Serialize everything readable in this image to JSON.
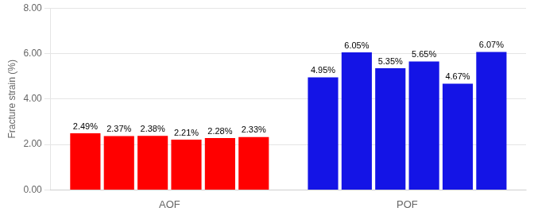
{
  "chart_data": {
    "type": "bar",
    "ylabel": "Fracture strain (%)",
    "categories": [
      "AOF",
      "POF"
    ],
    "series": [
      {
        "values": [
          2.49,
          4.95
        ],
        "value_labels": [
          "2.49%",
          "4.95%"
        ],
        "colors": [
          "#FF0000",
          "#1414E6"
        ]
      },
      {
        "values": [
          2.37,
          6.05
        ],
        "value_labels": [
          "2.37%",
          "6.05%"
        ],
        "colors": [
          "#FF0000",
          "#1414E6"
        ]
      },
      {
        "values": [
          2.38,
          5.35
        ],
        "value_labels": [
          "2.38%",
          "5.35%"
        ],
        "colors": [
          "#FF0000",
          "#1414E6"
        ]
      },
      {
        "values": [
          2.21,
          5.65
        ],
        "value_labels": [
          "2.21%",
          "5.65%"
        ],
        "colors": [
          "#FF0000",
          "#1414E6"
        ]
      },
      {
        "values": [
          2.28,
          4.67
        ],
        "value_labels": [
          "2.28%",
          "4.67%"
        ],
        "colors": [
          "#FF0000",
          "#1414E6"
        ]
      },
      {
        "values": [
          2.33,
          6.07
        ],
        "value_labels": [
          "2.33%",
          "6.07%"
        ],
        "colors": [
          "#FF0000",
          "#1414E6"
        ]
      }
    ],
    "ylim": [
      0,
      8.0
    ],
    "yticks": [
      {
        "value": 0.0,
        "label": "0.00"
      },
      {
        "value": 2.0,
        "label": "2.00"
      },
      {
        "value": 4.0,
        "label": "4.00"
      },
      {
        "value": 6.0,
        "label": "6.00"
      },
      {
        "value": 8.0,
        "label": "8.00"
      }
    ],
    "grid": true,
    "data_labels": true
  }
}
